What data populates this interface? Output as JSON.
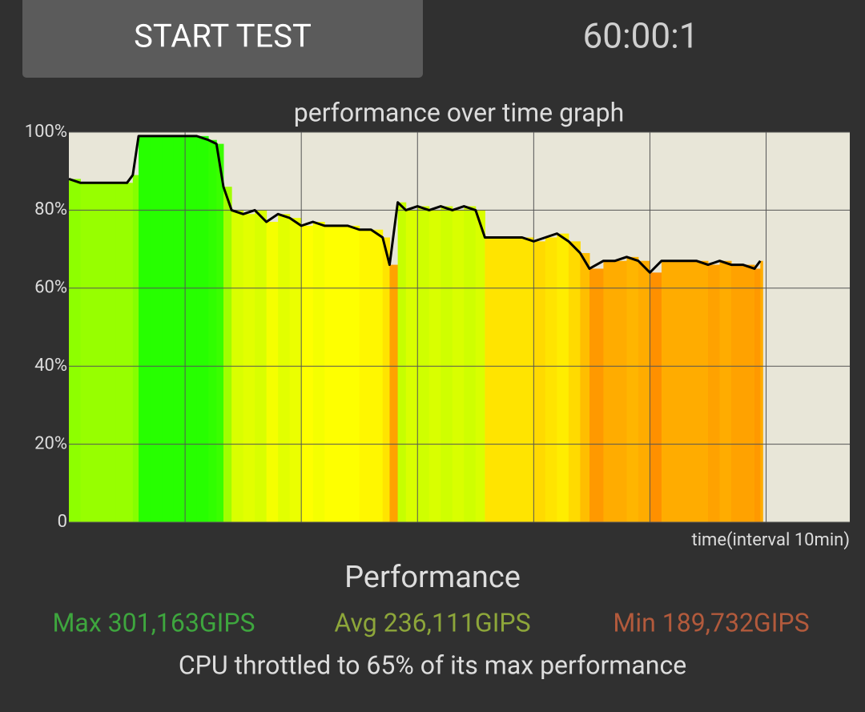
{
  "button": {
    "label": "START TEST"
  },
  "timer": "60:00:1",
  "chart_data": {
    "type": "area",
    "title": "performance over time graph",
    "xlabel": "time(interval 10min)",
    "x": [
      0,
      1,
      2,
      3,
      4,
      5,
      5.5,
      6,
      7,
      8,
      9,
      10,
      11,
      12,
      12.7,
      13.3,
      14,
      15,
      16,
      17,
      18,
      19,
      20,
      21,
      22,
      23,
      24,
      25,
      26,
      27,
      27.6,
      28.3,
      29,
      30,
      31,
      32,
      33,
      34,
      35,
      35.8,
      37,
      38,
      39,
      40,
      41,
      42,
      43,
      44,
      44.8,
      46,
      47,
      48,
      49,
      50,
      51,
      52,
      53,
      54,
      55,
      56,
      57,
      58,
      59,
      59.5
    ],
    "values": [
      88,
      87,
      87,
      87,
      87,
      87,
      89,
      99,
      99,
      99,
      99,
      99,
      99,
      98,
      97,
      86,
      80,
      79,
      80,
      77,
      79,
      78,
      76,
      77,
      76,
      76,
      76,
      75,
      75,
      73,
      66,
      82,
      80,
      81,
      80,
      81,
      80,
      81,
      80,
      73,
      73,
      73,
      73,
      72,
      73,
      74,
      72,
      69,
      65,
      67,
      67,
      68,
      67,
      64,
      67,
      67,
      67,
      67,
      66,
      67,
      66,
      66,
      65,
      67
    ],
    "color": "#000000",
    "xlim": [
      0,
      67.2
    ],
    "xticks": [
      10,
      20,
      30,
      40,
      50,
      60
    ],
    "ylim": [
      0,
      100
    ],
    "yticks": [
      0,
      {
        "value": 20,
        "label": "20%"
      },
      {
        "value": 40,
        "label": "40%"
      },
      {
        "value": 60,
        "label": "60%"
      },
      {
        "value": 80,
        "label": "80%"
      },
      {
        "value": 100,
        "label": "100%"
      }
    ],
    "grid": true
  },
  "summary": {
    "heading": "Performance",
    "stats": [
      {
        "text": "Max 301,163GIPS",
        "color": "#3ea63e"
      },
      {
        "text": "Avg 236,111GIPS",
        "color": "#8da63a"
      },
      {
        "text": "Min 189,732GIPS",
        "color": "#b25a3c"
      }
    ],
    "note": "CPU throttled to 65% of its max performance"
  }
}
